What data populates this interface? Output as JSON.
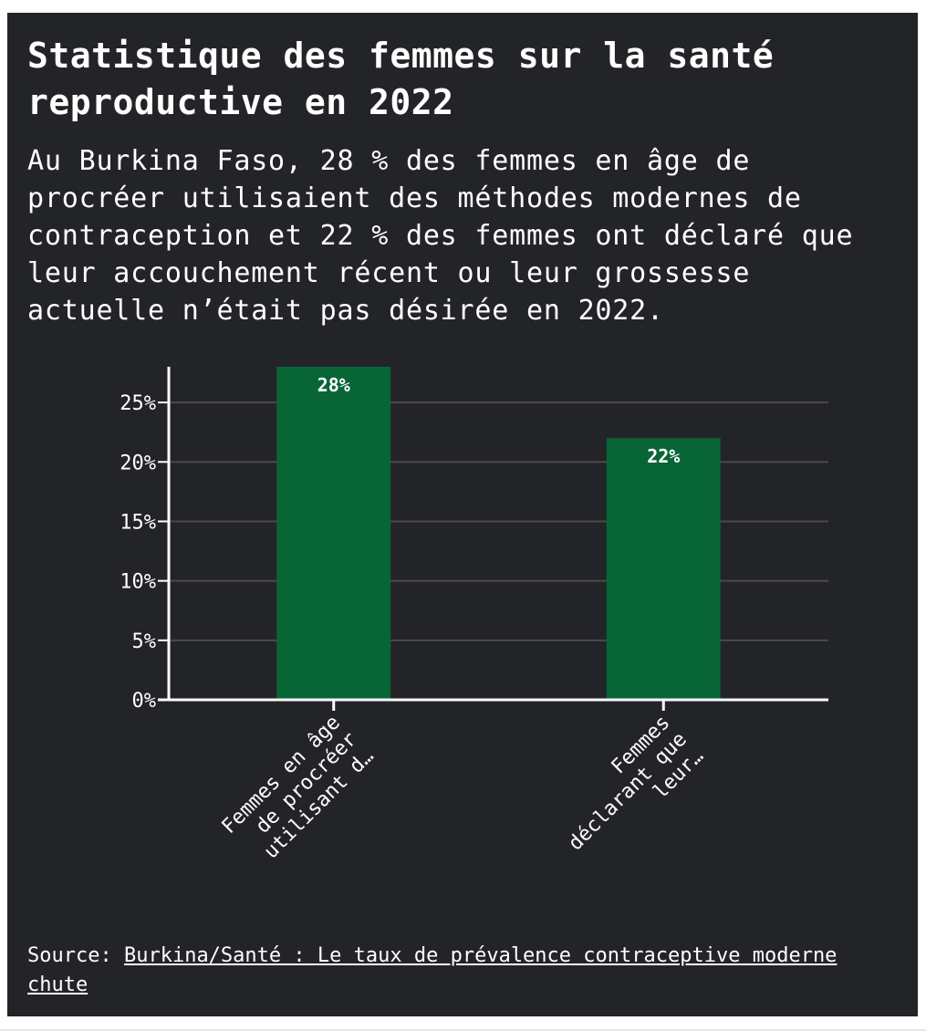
{
  "title": "Statistique des femmes sur la santé reproductive en 2022",
  "subtitle": "Au Burkina Faso, 28 % des femmes en âge de procréer utilisaient des méthodes modernes de contraception et 22 % des femmes ont déclaré que leur accouchement récent ou leur grossesse actuelle n’était pas désirée en 2022.",
  "source": {
    "prefix": "Source: ",
    "link_text": "Burkina/Santé : Le taux de prévalence contraceptive moderne chute"
  },
  "colors": {
    "background": "#232428",
    "bar": "#086536",
    "gridline": "#4a4a4a",
    "text": "#ffffff"
  },
  "chart_data": {
    "type": "bar",
    "categories": [
      "Femmes en âge de procréer utilisant d…",
      "Femmes déclarant que leur…"
    ],
    "category_label_lines": [
      [
        "Femmes en âge",
        "de procréer",
        "utilisant d…"
      ],
      [
        "Femmes",
        "déclarant que",
        "leur…"
      ]
    ],
    "values": [
      28,
      22
    ],
    "data_labels": [
      "28%",
      "22%"
    ],
    "ylim": [
      0,
      28
    ],
    "yticks": [
      0,
      5,
      10,
      15,
      20,
      25
    ],
    "ytick_labels": [
      "0%",
      "5%",
      "10%",
      "15%",
      "20%",
      "25%"
    ],
    "xlabel": "",
    "ylabel": "",
    "grid": true,
    "legend": "none"
  }
}
